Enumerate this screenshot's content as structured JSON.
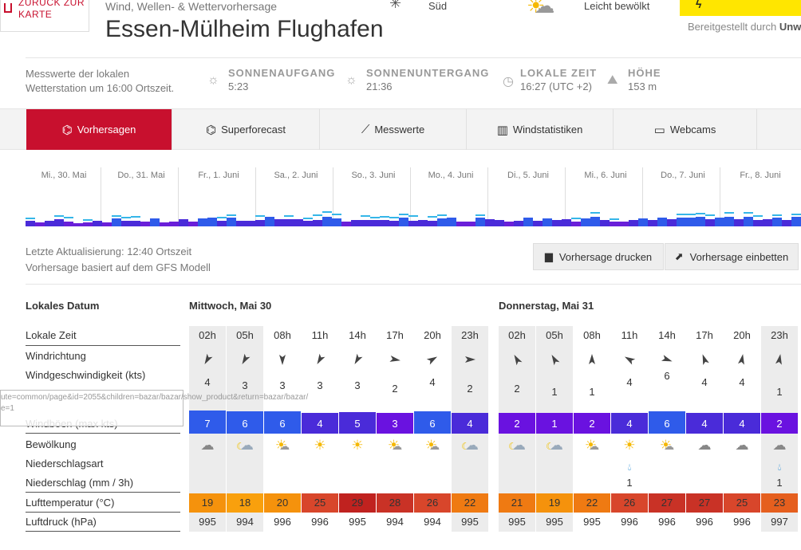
{
  "header": {
    "back_label_1": "ZURÜCK ZUR",
    "back_label_2": "KARTE",
    "subtitle": "Wind, Wellen- & Wettervorhersage",
    "title": "Essen-Mülheim Flughafen",
    "wind_direction": "Süd",
    "cloud_cover": "Leicht bewölkt",
    "provided_by": "Bereitgestellt durch",
    "provider": "Unw"
  },
  "station": {
    "line1": "Messwerte der lokalen",
    "line2": "Wetterstation um 16:00 Ortszeit.",
    "sunrise_label": "SONNENAUFGANG",
    "sunrise": "5:23",
    "sunset_label": "SONNENUNTERGANG",
    "sunset": "21:36",
    "localtime_label": "LOKALE ZEIT",
    "localtime": "16:27  (UTC +2)",
    "height_label": "HÖHE",
    "height": "153 m"
  },
  "tabs": [
    "Vorhersagen",
    "Superforecast",
    "Messwerte",
    "Windstatistiken",
    "Webcams"
  ],
  "overview_days": [
    "Mi., 30. Mai",
    "Do., 31. Mai",
    "Fr., 1. Juni",
    "Sa., 2. Juni",
    "So., 3. Juni",
    "Mo., 4. Juni",
    "Di., 5. Juni",
    "Mi., 6. Juni",
    "Do., 7. Juni",
    "Fr., 8. Juni"
  ],
  "update": {
    "line1": "Letzte Aktualisierung: 12:40 Ortszeit",
    "line2": "Vorhersage basiert auf dem GFS Modell",
    "print": "Vorhersage drucken",
    "embed": "Vorhersage einbetten"
  },
  "table": {
    "labels": {
      "date": "Lokales Datum",
      "time": "Lokale Zeit",
      "direction": "Windrichtung",
      "speed": "Windgeschwindigkeit (kts)",
      "gusts": "Windböen  (max kts)",
      "clouds": "Bewölkung",
      "precip_type": "Niederschlagsart",
      "precip": "Niederschlag  (mm / 3h)",
      "temp": "Lufttemperatur  (°C)",
      "pressure": "Luftdruck  (hPa)"
    },
    "tooltip": "ute=common/page&id=2055&children=bazar/bazar/show_product&return=bazar/bazar/",
    "tooltip2": "e=1",
    "days": [
      {
        "label": "Mittwoch, Mai 30",
        "hours": [
          "02h",
          "05h",
          "08h",
          "11h",
          "14h",
          "17h",
          "20h",
          "23h"
        ],
        "dir_deg": [
          210,
          210,
          180,
          210,
          210,
          100,
          60,
          90
        ],
        "speed": [
          4,
          3,
          3,
          3,
          3,
          2,
          4,
          2
        ],
        "gusts": [
          7,
          6,
          6,
          4,
          5,
          3,
          6,
          4
        ],
        "clouds": [
          "cloud-icon",
          "partly-night-icon",
          "partly-sunny-icon",
          "sun-icon",
          "sun-icon",
          "partly-sunny-icon",
          "partly-sunny-icon",
          "partly-night-icon"
        ],
        "precip_icon": [
          "",
          "",
          "",
          "",
          "",
          "",
          "",
          ""
        ],
        "precip": [
          "",
          "",
          "",
          "",
          "",
          "",
          "",
          ""
        ],
        "temp": [
          19,
          18,
          20,
          25,
          29,
          28,
          26,
          22
        ],
        "pressure": [
          995,
          994,
          996,
          996,
          995,
          994,
          994,
          995
        ]
      },
      {
        "label": "Donnerstag, Mai 31",
        "hours": [
          "02h",
          "05h",
          "08h",
          "11h",
          "14h",
          "17h",
          "20h",
          "23h"
        ],
        "dir_deg": [
          330,
          330,
          0,
          300,
          110,
          340,
          10,
          10
        ],
        "speed": [
          2,
          1,
          1,
          4,
          6,
          4,
          4,
          1
        ],
        "gusts": [
          2,
          1,
          2,
          4,
          6,
          4,
          4,
          2
        ],
        "clouds": [
          "partly-night-icon",
          "partly-night-icon",
          "partly-sunny-icon",
          "sun-icon",
          "partly-sunny-icon",
          "cloud-icon",
          "cloud-icon",
          "cloud-icon"
        ],
        "precip_icon": [
          "",
          "",
          "",
          "raindrop-icon",
          "",
          "",
          "",
          "raindrop-icon"
        ],
        "precip": [
          "",
          "",
          "",
          "1",
          "",
          "",
          "",
          "1"
        ],
        "temp": [
          21,
          19,
          22,
          26,
          27,
          27,
          25,
          23
        ],
        "pressure": [
          995,
          995,
          995,
          996,
          996,
          996,
          996,
          997
        ]
      }
    ]
  },
  "colors": {
    "accent": "#c8102e",
    "wind_low": "#4a2bd9",
    "wind_mid": "#2f5bea",
    "wind_vlow": "#7b1fe0"
  }
}
